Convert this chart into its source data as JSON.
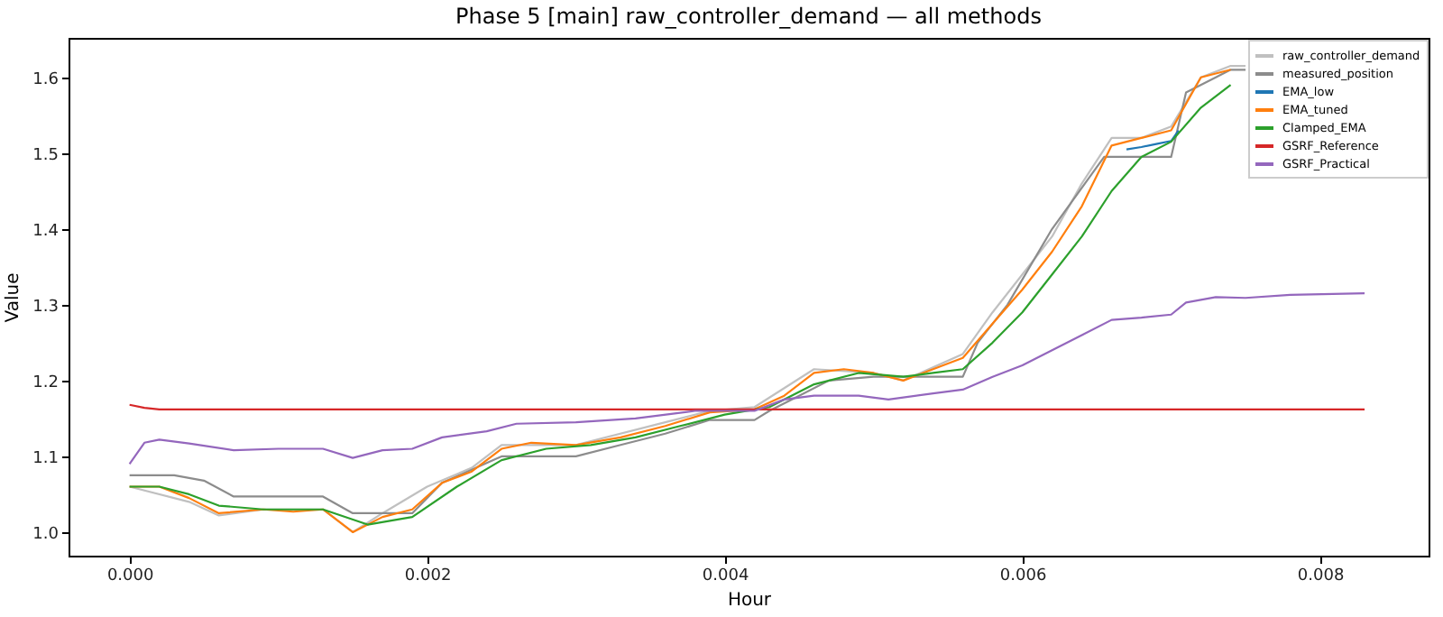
{
  "chart_data": {
    "type": "line",
    "title": "Phase 5 [main] raw_controller_demand — all methods",
    "xlabel": "Hour",
    "ylabel": "Value",
    "xlim": [
      -0.00041,
      0.00873
    ],
    "ylim": [
      0.969,
      1.652
    ],
    "xticks": [
      {
        "value": 0,
        "label": "0.000"
      },
      {
        "value": 0.002,
        "label": "0.002"
      },
      {
        "value": 0.004,
        "label": "0.004"
      },
      {
        "value": 0.006,
        "label": "0.006"
      },
      {
        "value": 0.008,
        "label": "0.008"
      }
    ],
    "yticks": [
      {
        "value": 1.0,
        "label": "1.0"
      },
      {
        "value": 1.1,
        "label": "1.1"
      },
      {
        "value": 1.2,
        "label": "1.2"
      },
      {
        "value": 1.3,
        "label": "1.3"
      },
      {
        "value": 1.4,
        "label": "1.4"
      },
      {
        "value": 1.5,
        "label": "1.5"
      },
      {
        "value": 1.6,
        "label": "1.6"
      }
    ],
    "grid": false,
    "legend": "top right",
    "line_style": "solid",
    "marker": "none",
    "series": [
      {
        "name": "raw_controller_demand",
        "color": "#c0c0c0",
        "x": [
          0,
          0.0004,
          0.0006,
          0.0009,
          0.0013,
          0.0015,
          0.0017,
          0.002,
          0.0023,
          0.0025,
          0.003,
          0.0036,
          0.0039,
          0.0042,
          0.0044,
          0.0046,
          0.005,
          0.0052,
          0.0056,
          0.0058,
          0.006,
          0.0062,
          0.0064,
          0.0066,
          0.0068,
          0.007,
          0.0072,
          0.0074,
          0.0075
        ],
        "values": [
          1.06,
          1.04,
          1.022,
          1.03,
          1.03,
          1.0,
          1.025,
          1.06,
          1.085,
          1.115,
          1.115,
          1.145,
          1.16,
          1.165,
          1.19,
          1.215,
          1.21,
          1.2,
          1.235,
          1.29,
          1.34,
          1.39,
          1.46,
          1.52,
          1.52,
          1.535,
          1.6,
          1.615,
          1.615
        ]
      },
      {
        "name": "measured_position",
        "color": "#8c8c8c",
        "x": [
          0,
          0.0003,
          0.0005,
          0.0007,
          0.0013,
          0.0015,
          0.0019,
          0.0021,
          0.0025,
          0.003,
          0.0033,
          0.0036,
          0.0039,
          0.0042,
          0.0043,
          0.0045,
          0.0047,
          0.005,
          0.0056,
          0.0057,
          0.0059,
          0.0062,
          0.00655,
          0.007,
          0.0071,
          0.0073,
          0.0074,
          0.0075
        ],
        "values": [
          1.075,
          1.075,
          1.068,
          1.047,
          1.047,
          1.025,
          1.025,
          1.065,
          1.1,
          1.1,
          1.115,
          1.13,
          1.148,
          1.148,
          1.16,
          1.18,
          1.2,
          1.205,
          1.205,
          1.25,
          1.3,
          1.4,
          1.495,
          1.495,
          1.58,
          1.6,
          1.61,
          1.61
        ]
      },
      {
        "name": "EMA_low",
        "color": "#1f77b4",
        "x": [
          0.0067,
          0.0068,
          0.0069,
          0.007,
          0.00705
        ],
        "values": [
          1.505,
          1.508,
          1.512,
          1.516,
          1.53
        ]
      },
      {
        "name": "EMA_tuned",
        "color": "#ff7f0e",
        "x": [
          0,
          0.0002,
          0.0004,
          0.0006,
          0.0009,
          0.0011,
          0.0013,
          0.0015,
          0.0017,
          0.0019,
          0.0021,
          0.0023,
          0.0025,
          0.0027,
          0.003,
          0.0033,
          0.0036,
          0.0039,
          0.0042,
          0.0044,
          0.0046,
          0.0048,
          0.005,
          0.0052,
          0.0054,
          0.0056,
          0.0058,
          0.006,
          0.0062,
          0.0064,
          0.0066,
          0.0068,
          0.007,
          0.0072,
          0.0074
        ],
        "values": [
          1.06,
          1.06,
          1.045,
          1.025,
          1.03,
          1.027,
          1.03,
          1.0,
          1.02,
          1.03,
          1.065,
          1.08,
          1.11,
          1.118,
          1.115,
          1.125,
          1.14,
          1.158,
          1.162,
          1.18,
          1.21,
          1.215,
          1.21,
          1.2,
          1.215,
          1.23,
          1.275,
          1.32,
          1.37,
          1.43,
          1.51,
          1.52,
          1.53,
          1.6,
          1.61
        ]
      },
      {
        "name": "Clamped_EMA",
        "color": "#2ca02c",
        "x": [
          0,
          0.0002,
          0.0004,
          0.0006,
          0.0009,
          0.0013,
          0.0016,
          0.0019,
          0.0022,
          0.0025,
          0.0028,
          0.0031,
          0.0034,
          0.0037,
          0.004,
          0.0043,
          0.0046,
          0.0049,
          0.0052,
          0.0054,
          0.0056,
          0.0058,
          0.006,
          0.0062,
          0.0064,
          0.0066,
          0.0068,
          0.007,
          0.0072,
          0.0074
        ],
        "values": [
          1.06,
          1.06,
          1.05,
          1.035,
          1.03,
          1.03,
          1.01,
          1.02,
          1.06,
          1.095,
          1.11,
          1.115,
          1.125,
          1.14,
          1.155,
          1.165,
          1.195,
          1.21,
          1.205,
          1.21,
          1.215,
          1.25,
          1.29,
          1.34,
          1.39,
          1.45,
          1.495,
          1.515,
          1.56,
          1.59
        ]
      },
      {
        "name": "GSRF_Reference",
        "color": "#d62728",
        "x": [
          0,
          0.0001,
          0.0002,
          0.0083
        ],
        "values": [
          1.168,
          1.164,
          1.162,
          1.162
        ]
      },
      {
        "name": "GSRF_Practical",
        "color": "#9467bd",
        "x": [
          0,
          0.0001,
          0.0002,
          0.0004,
          0.0007,
          0.001,
          0.0013,
          0.0015,
          0.0017,
          0.0019,
          0.0021,
          0.0024,
          0.0026,
          0.003,
          0.0034,
          0.0038,
          0.0042,
          0.0044,
          0.0046,
          0.0049,
          0.0051,
          0.0054,
          0.0056,
          0.0058,
          0.006,
          0.0062,
          0.0064,
          0.0066,
          0.0068,
          0.007,
          0.0071,
          0.0073,
          0.0075,
          0.0078,
          0.0083
        ],
        "values": [
          1.09,
          1.118,
          1.122,
          1.117,
          1.108,
          1.11,
          1.11,
          1.098,
          1.108,
          1.11,
          1.125,
          1.133,
          1.143,
          1.145,
          1.15,
          1.16,
          1.16,
          1.175,
          1.18,
          1.18,
          1.175,
          1.183,
          1.188,
          1.205,
          1.22,
          1.24,
          1.26,
          1.28,
          1.283,
          1.287,
          1.303,
          1.31,
          1.309,
          1.313,
          1.315
        ]
      }
    ]
  }
}
